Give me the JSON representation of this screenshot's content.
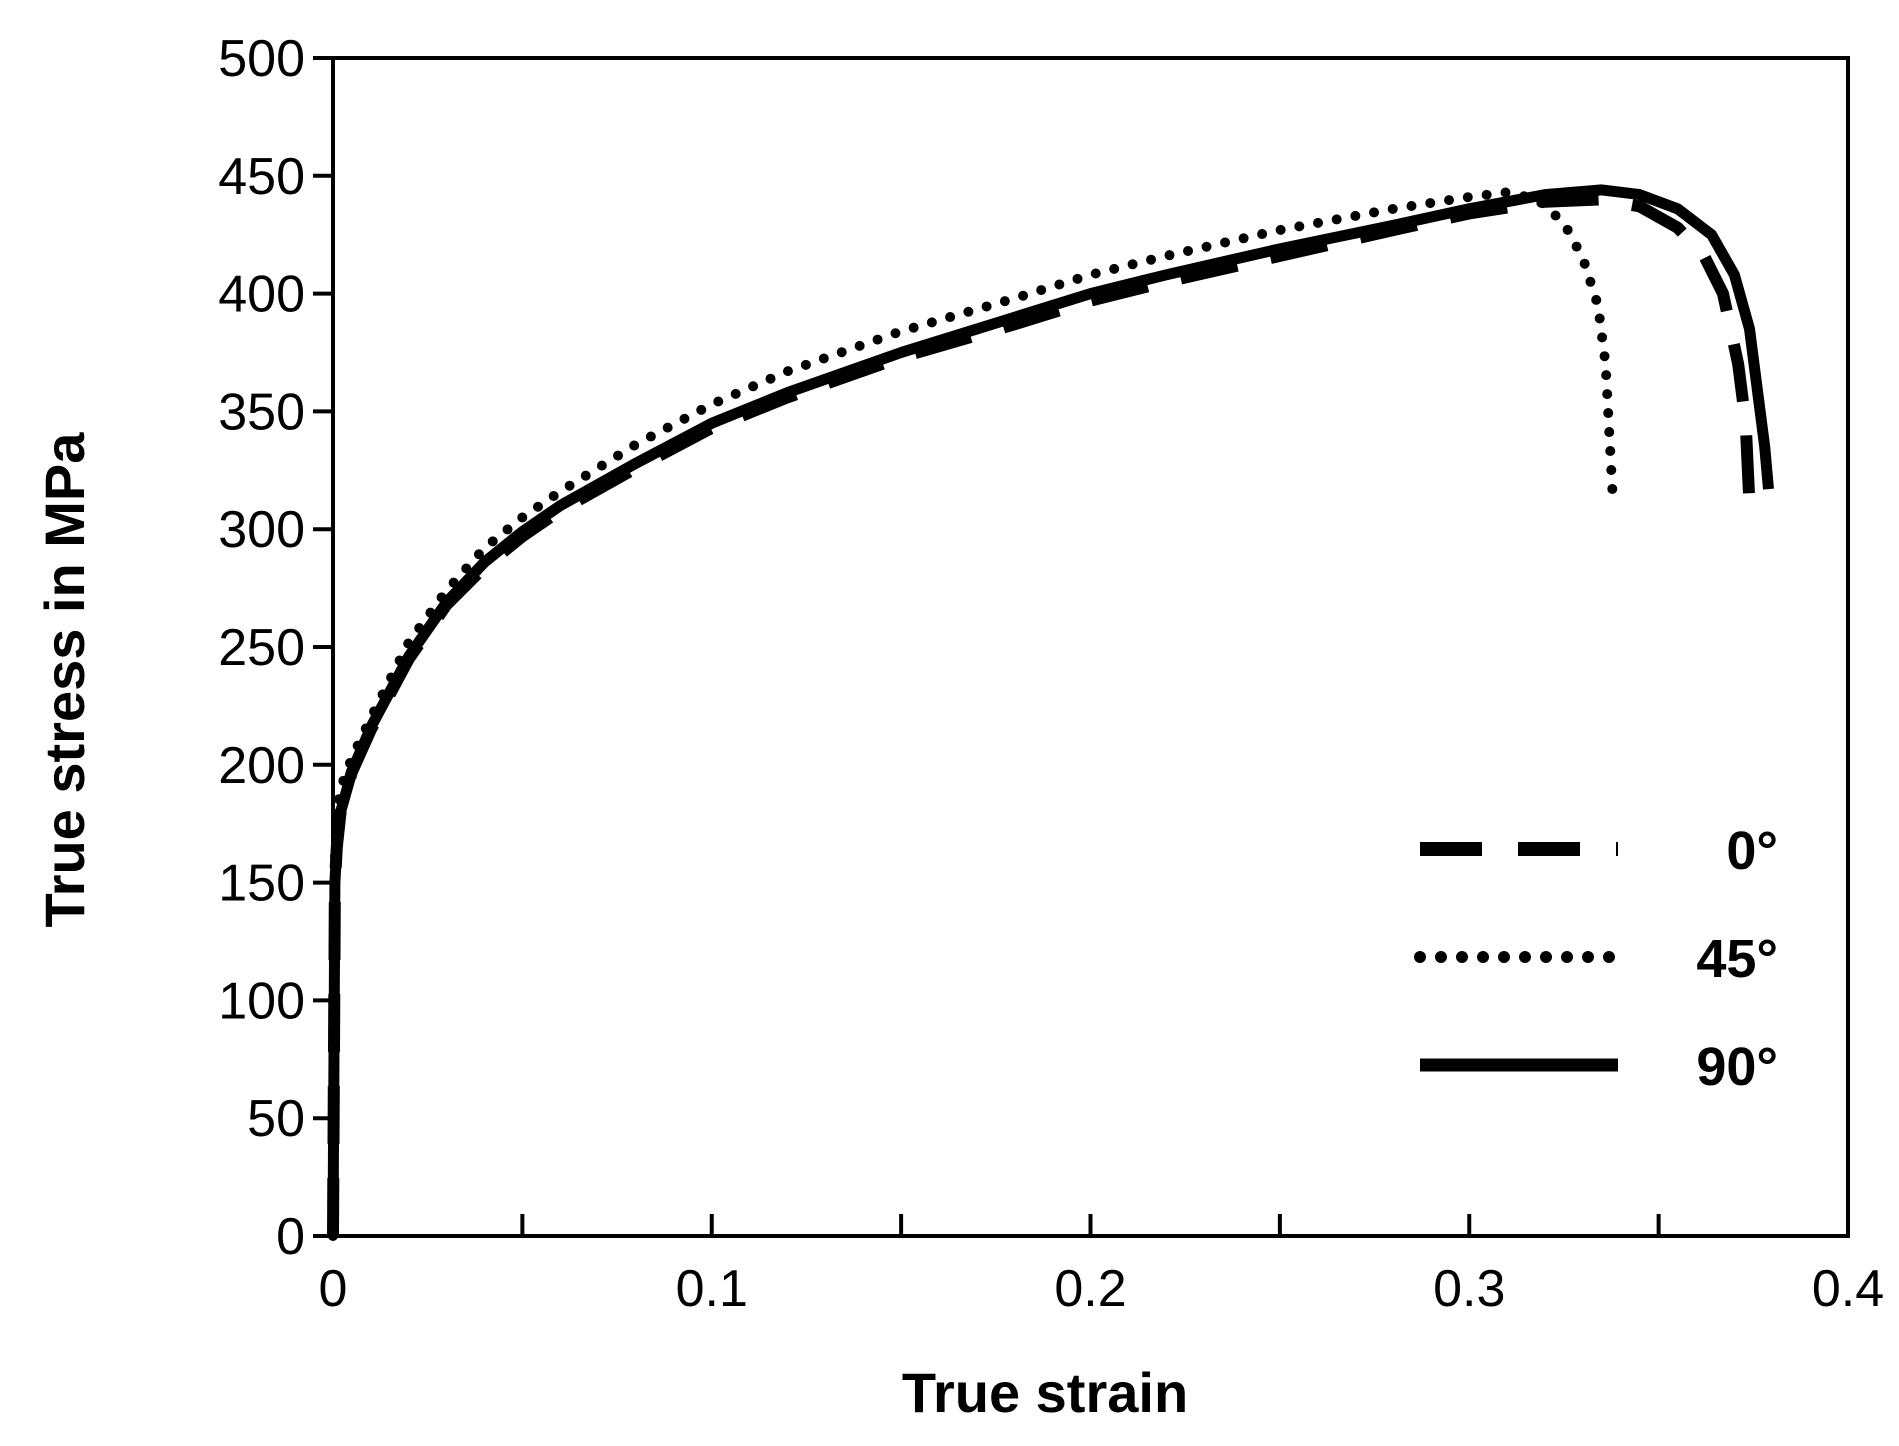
{
  "chart_data": {
    "type": "line",
    "title": "",
    "xlabel": "True strain",
    "ylabel": "True stress in MPa",
    "xlim": [
      0,
      0.4
    ],
    "ylim": [
      0,
      500
    ],
    "x_ticks": [
      0,
      0.05,
      0.1,
      0.15,
      0.2,
      0.25,
      0.3,
      0.35,
      0.4
    ],
    "x_tick_labels": [
      "0",
      "",
      "0.1",
      "",
      "0.2",
      "",
      "0.3",
      "",
      "0.4"
    ],
    "y_ticks": [
      0,
      50,
      100,
      150,
      200,
      250,
      300,
      350,
      400,
      450,
      500
    ],
    "y_tick_labels": [
      "0",
      "50",
      "100",
      "150",
      "200",
      "250",
      "300",
      "350",
      "400",
      "450",
      "500"
    ],
    "grid": false,
    "legend_position": "bottom-right",
    "series": [
      {
        "name": "0°",
        "line_style": "dashed",
        "color": "#000000",
        "points": [
          [
            0,
            0
          ],
          [
            0.0005,
            150
          ],
          [
            0.001,
            165
          ],
          [
            0.002,
            180
          ],
          [
            0.005,
            197
          ],
          [
            0.01,
            215
          ],
          [
            0.02,
            245
          ],
          [
            0.03,
            268
          ],
          [
            0.04,
            284
          ],
          [
            0.05,
            297
          ],
          [
            0.06,
            308
          ],
          [
            0.08,
            326
          ],
          [
            0.1,
            343
          ],
          [
            0.12,
            356
          ],
          [
            0.15,
            373
          ],
          [
            0.18,
            387
          ],
          [
            0.2,
            397
          ],
          [
            0.22,
            405
          ],
          [
            0.25,
            416
          ],
          [
            0.28,
            427
          ],
          [
            0.3,
            434
          ],
          [
            0.32,
            439
          ],
          [
            0.335,
            440
          ],
          [
            0.345,
            437
          ],
          [
            0.355,
            428
          ],
          [
            0.362,
            416
          ],
          [
            0.367,
            400
          ],
          [
            0.371,
            370
          ],
          [
            0.373,
            345
          ],
          [
            0.374,
            310
          ]
        ]
      },
      {
        "name": "45°",
        "line_style": "dotted",
        "color": "#000000",
        "points": [
          [
            0,
            0
          ],
          [
            0.0005,
            160
          ],
          [
            0.001,
            180
          ],
          [
            0.002,
            190
          ],
          [
            0.005,
            203
          ],
          [
            0.01,
            220
          ],
          [
            0.02,
            252
          ],
          [
            0.03,
            274
          ],
          [
            0.04,
            292
          ],
          [
            0.05,
            305
          ],
          [
            0.06,
            316
          ],
          [
            0.08,
            336
          ],
          [
            0.1,
            353
          ],
          [
            0.12,
            367
          ],
          [
            0.15,
            384
          ],
          [
            0.18,
            398
          ],
          [
            0.2,
            408
          ],
          [
            0.22,
            416
          ],
          [
            0.25,
            427
          ],
          [
            0.28,
            436
          ],
          [
            0.3,
            441
          ],
          [
            0.31,
            443
          ],
          [
            0.318,
            440
          ],
          [
            0.325,
            430
          ],
          [
            0.33,
            415
          ],
          [
            0.334,
            395
          ],
          [
            0.336,
            370
          ],
          [
            0.337,
            340
          ],
          [
            0.338,
            310
          ]
        ]
      },
      {
        "name": "90°",
        "line_style": "solid",
        "color": "#000000",
        "points": [
          [
            0,
            0
          ],
          [
            0.0005,
            150
          ],
          [
            0.001,
            165
          ],
          [
            0.002,
            180
          ],
          [
            0.005,
            197
          ],
          [
            0.01,
            216
          ],
          [
            0.02,
            246
          ],
          [
            0.03,
            269
          ],
          [
            0.04,
            286
          ],
          [
            0.05,
            299
          ],
          [
            0.06,
            310
          ],
          [
            0.08,
            328
          ],
          [
            0.1,
            345
          ],
          [
            0.12,
            358
          ],
          [
            0.15,
            375
          ],
          [
            0.18,
            390
          ],
          [
            0.2,
            400
          ],
          [
            0.22,
            408
          ],
          [
            0.25,
            419
          ],
          [
            0.28,
            429
          ],
          [
            0.3,
            436
          ],
          [
            0.32,
            442
          ],
          [
            0.335,
            444
          ],
          [
            0.345,
            442
          ],
          [
            0.355,
            436
          ],
          [
            0.364,
            425
          ],
          [
            0.37,
            408
          ],
          [
            0.374,
            385
          ],
          [
            0.376,
            360
          ],
          [
            0.378,
            335
          ],
          [
            0.379,
            317
          ]
        ]
      }
    ]
  }
}
